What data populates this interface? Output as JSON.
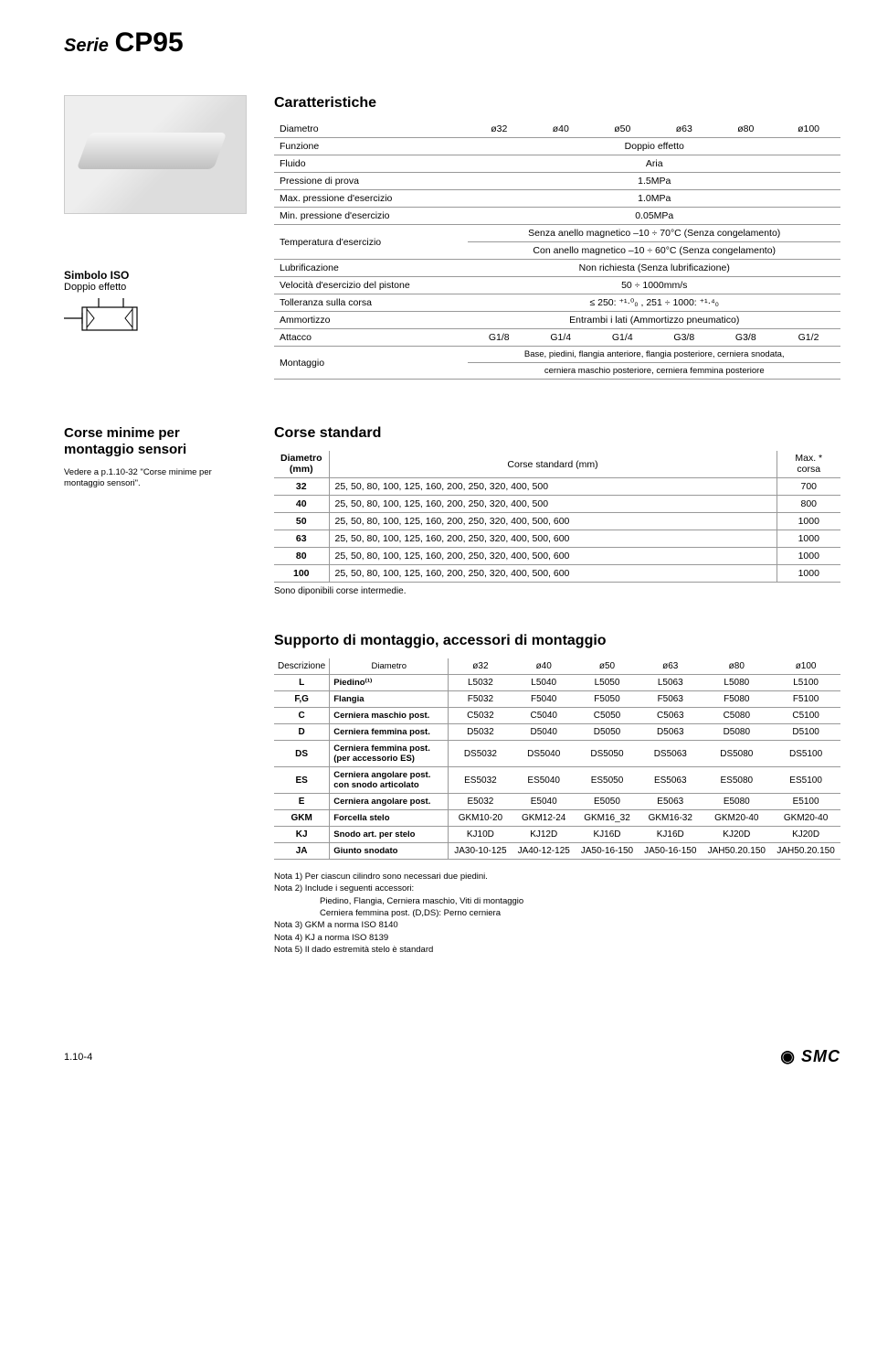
{
  "series": {
    "prefix": "Serie",
    "code": "CP95"
  },
  "characteristics": {
    "title": "Caratteristiche",
    "diameters": [
      "ø32",
      "ø40",
      "ø50",
      "ø63",
      "ø80",
      "ø100"
    ],
    "rows": [
      {
        "label": "Funzione",
        "value": "Doppio effetto"
      },
      {
        "label": "Fluido",
        "value": "Aria"
      },
      {
        "label": "Pressione di prova",
        "value": "1.5MPa"
      },
      {
        "label": "Max. pressione d'esercizio",
        "value": "1.0MPa"
      },
      {
        "label": "Min. pressione d'esercizio",
        "value": "0.05MPa"
      }
    ],
    "temp_label": "Temperatura d'esercizio",
    "temp_v1": "Senza anello magnetico –10 ÷ 70°C (Senza congelamento)",
    "temp_v2": "Con anello magnetico –10 ÷ 60°C (Senza congelamento)",
    "rows2": [
      {
        "label": "Lubrificazione",
        "value": "Non richiesta (Senza lubrificazione)"
      },
      {
        "label": "Velocità d'esercizio del pistone",
        "value": "50 ÷ 1000mm/s"
      },
      {
        "label": "Tolleranza sulla corsa",
        "value": "≤ 250: ⁺¹·⁰₀ , 251 ÷ 1000: ⁺¹·⁴₀"
      },
      {
        "label": "Ammortizzo",
        "value": "Entrambi i lati (Ammortizzo pneumatico)"
      }
    ],
    "attacco_label": "Attacco",
    "attacco": [
      "G1/8",
      "G1/4",
      "G1/4",
      "G3/8",
      "G3/8",
      "G1/2"
    ],
    "montaggio_label": "Montaggio",
    "montaggio_v1": "Base, piedini, flangia anteriore, flangia posteriore, cerniera snodata,",
    "montaggio_v2": "cerniera maschio posteriore, cerniera femmina posteriore"
  },
  "iso": {
    "label": "Simbolo ISO",
    "sub": "Doppio effetto"
  },
  "minime": {
    "title": "Corse minime per montaggio sensori",
    "note": "Vedere a p.1.10-32 \"Corse minime per montaggio sensori\"."
  },
  "corse": {
    "title": "Corse standard",
    "h_dia": "Diametro (mm)",
    "h_mid": "Corse standard (mm)",
    "h_max": "Max. * corsa",
    "rows": [
      {
        "d": "32",
        "v": "25, 50, 80, 100, 125, 160, 200, 250, 320, 400, 500",
        "m": "700"
      },
      {
        "d": "40",
        "v": "25, 50, 80, 100, 125, 160, 200, 250, 320, 400, 500",
        "m": "800"
      },
      {
        "d": "50",
        "v": "25, 50, 80, 100, 125, 160, 200, 250, 320, 400, 500, 600",
        "m": "1000"
      },
      {
        "d": "63",
        "v": "25, 50, 80, 100, 125, 160, 200, 250, 320, 400, 500, 600",
        "m": "1000"
      },
      {
        "d": "80",
        "v": "25, 50, 80, 100, 125, 160, 200, 250, 320, 400, 500, 600",
        "m": "1000"
      },
      {
        "d": "100",
        "v": "25, 50, 80, 100, 125, 160, 200, 250, 320, 400, 500, 600",
        "m": "1000"
      }
    ],
    "note": "Sono diponibili corse intermedie."
  },
  "supporto": {
    "title": "Supporto di montaggio, accessori di montaggio",
    "h_desc": "Descrizione",
    "h_dia": "Diametro",
    "diameters": [
      "ø32",
      "ø40",
      "ø50",
      "ø63",
      "ø80",
      "ø100"
    ],
    "rows": [
      {
        "c": "L",
        "d": "Piedino⁽¹⁾",
        "v": [
          "L5032",
          "L5040",
          "L5050",
          "L5063",
          "L5080",
          "L5100"
        ]
      },
      {
        "c": "F,G",
        "d": "Flangia",
        "v": [
          "F5032",
          "F5040",
          "F5050",
          "F5063",
          "F5080",
          "F5100"
        ]
      },
      {
        "c": "C",
        "d": "Cerniera maschio post.",
        "v": [
          "C5032",
          "C5040",
          "C5050",
          "C5063",
          "C5080",
          "C5100"
        ]
      },
      {
        "c": "D",
        "d": "Cerniera femmina post.",
        "v": [
          "D5032",
          "D5040",
          "D5050",
          "D5063",
          "D5080",
          "D5100"
        ]
      },
      {
        "c": "DS",
        "d": "Cerniera femmina post. (per accessorio ES)",
        "v": [
          "DS5032",
          "DS5040",
          "DS5050",
          "DS5063",
          "DS5080",
          "DS5100"
        ]
      },
      {
        "c": "ES",
        "d": "Cerniera angolare post. con snodo articolato",
        "v": [
          "ES5032",
          "ES5040",
          "ES5050",
          "ES5063",
          "ES5080",
          "ES5100"
        ]
      },
      {
        "c": "E",
        "d": "Cerniera angolare post.",
        "v": [
          "E5032",
          "E5040",
          "E5050",
          "E5063",
          "E5080",
          "E5100"
        ]
      },
      {
        "c": "GKM",
        "d": "Forcella stelo",
        "v": [
          "GKM10-20",
          "GKM12-24",
          "GKM16_32",
          "GKM16-32",
          "GKM20-40",
          "GKM20-40"
        ]
      },
      {
        "c": "KJ",
        "d": "Snodo art. per stelo",
        "v": [
          "KJ10D",
          "KJ12D",
          "KJ16D",
          "KJ16D",
          "KJ20D",
          "KJ20D"
        ]
      },
      {
        "c": "JA",
        "d": "Giunto snodato",
        "v": [
          "JA30-10-125",
          "JA40-12-125",
          "JA50-16-150",
          "JA50-16-150",
          "JAH50.20.150",
          "JAH50.20.150"
        ]
      }
    ],
    "notes": [
      "Nota 1) Per ciascun cilindro sono necessari due piedini.",
      "Nota 2) Include i seguenti accessori:",
      "Piedino, Flangia, Cerniera maschio, Viti di montaggio",
      "Cerniera femmina post. (D,DS): Perno cerniera",
      "Nota 3) GKM a norma ISO 8140",
      "Nota 4) KJ a norma ISO 8139",
      "Nota 5) Il dado estremità stelo è standard"
    ]
  },
  "footer": {
    "page": "1.10-4",
    "logo": "SMC"
  }
}
